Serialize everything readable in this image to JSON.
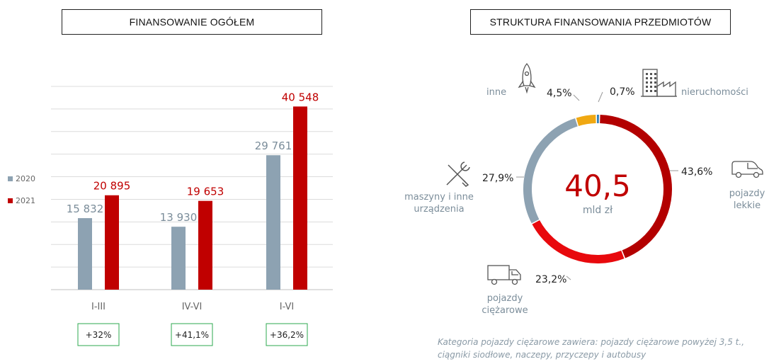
{
  "left_title": "FINANSOWANIE OGÓŁEM",
  "right_title": "STRUKTURA FINANSOWANIA PRZEDMIOTÓW",
  "colors": {
    "series_2020": "#8da2b2",
    "series_2021": "#c00000",
    "growth_border": "#2ea84f",
    "grid": "#dcdcdc",
    "center_value": "#c00000",
    "label_gray": "#7b8d9a"
  },
  "chart_data": [
    {
      "type": "bar",
      "categories": [
        "I-III",
        "IV-VI",
        "I-VI"
      ],
      "series": [
        {
          "name": "2020",
          "values": [
            15832,
            13930,
            29761
          ],
          "labels": [
            "15 832",
            "13 930",
            "29 761"
          ]
        },
        {
          "name": "2021",
          "values": [
            20895,
            19653,
            40548
          ],
          "labels": [
            "20 895",
            "19 653",
            "40 548"
          ]
        }
      ],
      "growth": [
        "+32%",
        "+41,1%",
        "+36,2%"
      ],
      "ylim": [
        0,
        45000
      ],
      "grid": true,
      "legend_placement": "left"
    },
    {
      "type": "pie",
      "style": "donut",
      "center_value": "40,5",
      "center_unit": "mld zł",
      "slices": [
        {
          "name": "pojazdy lekkie",
          "value": 43.6,
          "label": "43,6%",
          "color": "#b30000",
          "icon": "car-icon"
        },
        {
          "name": "pojazdy ciężarowe",
          "value": 23.2,
          "label": "23,2%",
          "color": "#e8090d",
          "icon": "truck-icon"
        },
        {
          "name": "maszyny i inne urządzenia",
          "value": 27.9,
          "label": "27,9%",
          "color": "#8da2b2",
          "icon": "tools-icon"
        },
        {
          "name": "inne",
          "value": 4.5,
          "label": "4,5%",
          "color": "#f0a812",
          "icon": "rocket-icon"
        },
        {
          "name": "nieruchomości",
          "value": 0.7,
          "label": "0,7%",
          "color": "#2f7fb8",
          "icon": "factory-icon"
        }
      ]
    }
  ],
  "note": "Kategoria pojazdy ciężarowe zawiera: pojazdy ciężarowe powyżej 3,5 t., ciągniki siodłowe, naczepy, przyczepy i autobusy"
}
